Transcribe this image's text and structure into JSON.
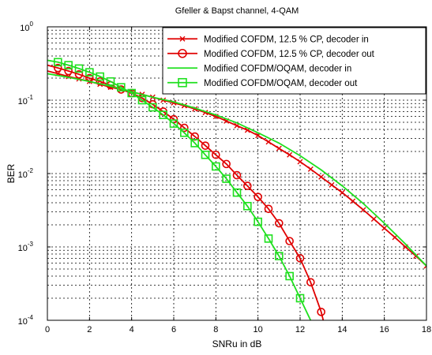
{
  "chart_data": {
    "type": "line",
    "title": "Gfeller & Bapst channel, 4-QAM",
    "xlabel": "SNRu in dB",
    "ylabel": "BER",
    "xlim": [
      0,
      18
    ],
    "ylim": [
      0.0001,
      1
    ],
    "yscale": "log",
    "grid": true,
    "legend_position": "top-right",
    "x_ticks": [
      "0",
      "2",
      "4",
      "6",
      "8",
      "10",
      "12",
      "14",
      "16",
      "18"
    ],
    "y_ticks": [
      {
        "base": "10",
        "exp": "0"
      },
      {
        "base": "10",
        "exp": "-1"
      },
      {
        "base": "10",
        "exp": "-2"
      },
      {
        "base": "10",
        "exp": "-3"
      },
      {
        "base": "10",
        "exp": "-4"
      }
    ],
    "series": [
      {
        "name": "Modified COFDM, 12.5 % CP, decoder in",
        "color": "#e00000",
        "marker": "x",
        "x": [
          0,
          0.5,
          1,
          1.5,
          2,
          2.5,
          3,
          3.5,
          4,
          4.5,
          5,
          5.5,
          6,
          6.5,
          7,
          7.5,
          8,
          8.5,
          9,
          9.5,
          10,
          10.5,
          11,
          11.5,
          12,
          12.5,
          13,
          13.5,
          14,
          14.5,
          15,
          15.5,
          16,
          16.5,
          17,
          17.5,
          18
        ],
        "y": [
          0.25,
          0.23,
          0.21,
          0.195,
          0.18,
          0.165,
          0.15,
          0.14,
          0.13,
          0.12,
          0.11,
          0.1,
          0.092,
          0.084,
          0.076,
          0.068,
          0.06,
          0.052,
          0.045,
          0.039,
          0.033,
          0.027,
          0.022,
          0.018,
          0.0145,
          0.0115,
          0.009,
          0.007,
          0.0055,
          0.0042,
          0.0032,
          0.0024,
          0.0018,
          0.00135,
          0.001,
          0.00075,
          0.00055
        ]
      },
      {
        "name": "Modified COFDM, 12.5 % CP, decoder out",
        "color": "#e00000",
        "marker": "o",
        "x": [
          0,
          0.5,
          1,
          1.5,
          2,
          2.5,
          3,
          3.5,
          4,
          4.5,
          5,
          5.5,
          6,
          6.5,
          7,
          7.5,
          8,
          8.5,
          9,
          9.5,
          10,
          10.5,
          11,
          11.5,
          12,
          12.5,
          13,
          13.1
        ],
        "y": [
          0.3,
          0.275,
          0.25,
          0.225,
          0.2,
          0.18,
          0.16,
          0.14,
          0.125,
          0.107,
          0.088,
          0.07,
          0.055,
          0.042,
          0.032,
          0.024,
          0.018,
          0.0135,
          0.0095,
          0.0068,
          0.0048,
          0.0033,
          0.0021,
          0.0012,
          0.0007,
          0.00033,
          0.00013,
          0.0001
        ]
      },
      {
        "name": "Modified COFDM/OQAM, decoder in",
        "color": "#1ee01e",
        "marker": "none",
        "x": [
          0,
          1,
          2,
          3,
          4,
          5,
          6,
          7,
          8,
          9,
          10,
          11,
          12,
          13,
          14,
          15,
          16,
          17,
          18
        ],
        "y": [
          0.23,
          0.205,
          0.18,
          0.155,
          0.13,
          0.11,
          0.095,
          0.078,
          0.063,
          0.049,
          0.036,
          0.026,
          0.0175,
          0.0112,
          0.0068,
          0.0039,
          0.0021,
          0.0011,
          0.00055
        ]
      },
      {
        "name": "Modified COFDM/OQAM, decoder out",
        "color": "#1ee01e",
        "marker": "s",
        "x": [
          0,
          0.5,
          1,
          1.5,
          2,
          2.5,
          3,
          3.5,
          4,
          4.5,
          5,
          5.5,
          6,
          6.5,
          7,
          7.5,
          8,
          8.5,
          9,
          9.5,
          10,
          10.5,
          11,
          11.5,
          12,
          12.5
        ],
        "y": [
          0.35,
          0.33,
          0.3,
          0.27,
          0.24,
          0.21,
          0.18,
          0.15,
          0.125,
          0.1,
          0.08,
          0.063,
          0.048,
          0.036,
          0.026,
          0.018,
          0.0125,
          0.0085,
          0.0055,
          0.0036,
          0.0022,
          0.0013,
          0.00075,
          0.0004,
          0.0002,
          0.0001
        ]
      }
    ]
  }
}
